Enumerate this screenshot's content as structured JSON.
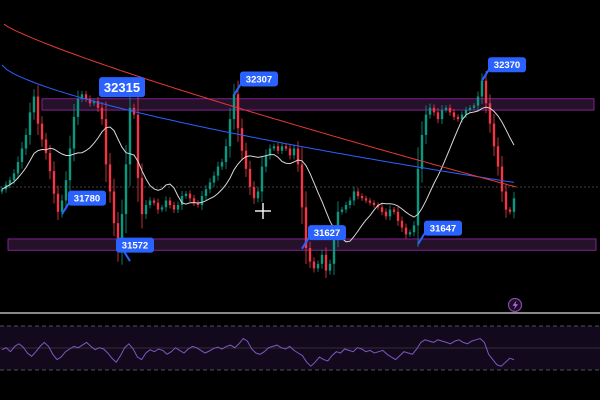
{
  "chart_data": {
    "type": "candlestick",
    "price_range": [
      31400,
      32550
    ],
    "resistance_zone": [
      32240,
      32290
    ],
    "support_zone": [
      31620,
      31670
    ],
    "callouts": [
      {
        "label": "32315",
        "price": 32315,
        "bar": 34
      },
      {
        "label": "32307",
        "price": 32307,
        "bar": 58
      },
      {
        "label": "31780",
        "price": 31780,
        "bar": 15
      },
      {
        "label": "31572",
        "price": 31572,
        "bar": 32
      },
      {
        "label": "31627",
        "price": 31627,
        "bar": 75
      },
      {
        "label": "31647",
        "price": 31647,
        "bar": 104
      },
      {
        "label": "32370",
        "price": 32370,
        "bar": 120
      }
    ],
    "close_series": [
      31890,
      31910,
      31930,
      31960,
      32010,
      32070,
      32130,
      32230,
      32300,
      32180,
      32110,
      32050,
      31970,
      31870,
      31790,
      31840,
      31930,
      32070,
      32210,
      32290,
      32310,
      32290,
      32270,
      32280,
      32250,
      32200,
      32000,
      31880,
      31740,
      31620,
      31780,
      32000,
      32250,
      32220,
      31940,
      31780,
      31820,
      31840,
      31830,
      31800,
      31810,
      31840,
      31820,
      31800,
      31820,
      31860,
      31870,
      31850,
      31830,
      31820,
      31860,
      31890,
      31920,
      31950,
      31990,
      32010,
      32080,
      32200,
      32310,
      32160,
      32060,
      31980,
      31900,
      31850,
      31880,
      31990,
      32040,
      32070,
      32080,
      32060,
      32080,
      32070,
      32040,
      32070,
      32000,
      31810,
      31630,
      31570,
      31540,
      31560,
      31600,
      31530,
      31560,
      31680,
      31790,
      31800,
      31820,
      31840,
      31880,
      31860,
      31850,
      31840,
      31830,
      31820,
      31810,
      31790,
      31770,
      31800,
      31790,
      31750,
      31720,
      31690,
      31700,
      31730,
      31980,
      32130,
      32220,
      32250,
      32230,
      32200,
      32240,
      32250,
      32230,
      32210,
      32200,
      32220,
      32240,
      32250,
      32260,
      32300,
      32370,
      32270,
      32180,
      32080,
      31990,
      31880,
      31800,
      31790,
      31850
    ]
  },
  "rsi": {
    "values": [
      55,
      58,
      52,
      60,
      64,
      59,
      50,
      45,
      52,
      60,
      66,
      60,
      48,
      40,
      44,
      52,
      56,
      60,
      58,
      62,
      66,
      60,
      55,
      58,
      56,
      50,
      42,
      36,
      46,
      58,
      64,
      56,
      44,
      40,
      50,
      55,
      52,
      56,
      54,
      48,
      52,
      58,
      54,
      50,
      56,
      60,
      58,
      54,
      50,
      53,
      57,
      59,
      56,
      60,
      62,
      58,
      64,
      72,
      68,
      56,
      50,
      48,
      52,
      58,
      60,
      62,
      58,
      56,
      60,
      54,
      50,
      46,
      36,
      30,
      36,
      44,
      40,
      38,
      46,
      52,
      50,
      56,
      54,
      52,
      58,
      56,
      52,
      54,
      50,
      52,
      54,
      48,
      44,
      40,
      46,
      52,
      50,
      48,
      56,
      66,
      70,
      68,
      66,
      70,
      68,
      66,
      64,
      68,
      70,
      66,
      64,
      68,
      70,
      72,
      66,
      48,
      40,
      32,
      30,
      36,
      42,
      40
    ],
    "upper_band": 70,
    "lower_band": 30
  },
  "colors": {
    "up": "#089981",
    "down": "#f23645",
    "zone_fill": "#2d1433",
    "zone_stroke": "#9c27b0",
    "callout": "#2962ff",
    "ma_white": "#d8d8d8",
    "ma_blue": "#2962ff",
    "ma_red": "#e53935",
    "rsi_line": "#7e57c2"
  },
  "icons": {
    "crosshair": "crosshair-icon",
    "lightning": "lightning-icon"
  }
}
